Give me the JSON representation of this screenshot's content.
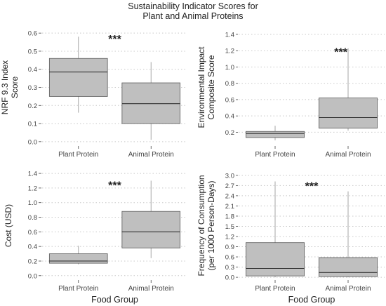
{
  "figure": {
    "title_lines": [
      "Sustainability Indicator Scores for",
      "Plant and Animal Proteins"
    ]
  },
  "chart_data": [
    {
      "type": "boxplot",
      "ylabel_lines": [
        "NRF 9.3 Index",
        "Score"
      ],
      "xlabel": "",
      "ylim": [
        -0.02,
        0.62
      ],
      "yticks": [
        0.0,
        0.1,
        0.2,
        0.3,
        0.4,
        0.5,
        0.6
      ],
      "ytick_labels": [
        "0.0",
        "0.1",
        "0.2",
        "0.3",
        "0.4",
        "0.5",
        "0.6"
      ],
      "categories": [
        "Plant Protein",
        "Animal Protein"
      ],
      "boxes": [
        {
          "q1": 0.25,
          "median": 0.385,
          "q3": 0.46,
          "whisker_low": 0.16,
          "whisker_high": 0.58
        },
        {
          "q1": 0.1,
          "median": 0.21,
          "q3": 0.325,
          "whisker_low": 0.01,
          "whisker_high": 0.44
        }
      ],
      "annotation": "***",
      "annotation_x": 1.5,
      "annotation_y": 0.57,
      "grid": true
    },
    {
      "type": "boxplot",
      "ylabel_lines": [
        "Environmental Impact",
        "Composite Score"
      ],
      "xlabel": "",
      "ylim": [
        0.04,
        1.46
      ],
      "yticks": [
        0.2,
        0.4,
        0.6,
        0.8,
        1.0,
        1.2,
        1.4
      ],
      "ytick_labels": [
        "0.2",
        "0.4",
        "0.6",
        "0.8",
        "1.0",
        "1.2",
        "1.4"
      ],
      "categories": [
        "Plant Protein",
        "Animal Protein"
      ],
      "boxes": [
        {
          "q1": 0.135,
          "median": 0.185,
          "q3": 0.21,
          "whisker_low": 0.1,
          "whisker_high": 0.28
        },
        {
          "q1": 0.25,
          "median": 0.38,
          "q3": 0.62,
          "whisker_low": 0.22,
          "whisker_high": 1.23
        }
      ],
      "annotation": "***",
      "annotation_x": 1.9,
      "annotation_y": 1.19,
      "grid": true
    },
    {
      "type": "boxplot",
      "ylabel_lines": [
        "Cost (USD)"
      ],
      "xlabel": "Food Group",
      "ylim": [
        -0.05,
        1.42
      ],
      "yticks": [
        0.0,
        0.2,
        0.4,
        0.6,
        0.8,
        1.0,
        1.2,
        1.4
      ],
      "ytick_labels": [
        "0.0",
        "0.2",
        "0.4",
        "0.6",
        "0.8",
        "1.0",
        "1.2",
        "1.4"
      ],
      "categories": [
        "Plant Protein",
        "Animal Protein"
      ],
      "boxes": [
        {
          "q1": 0.17,
          "median": 0.2,
          "q3": 0.3,
          "whisker_low": 0.155,
          "whisker_high": 0.41
        },
        {
          "q1": 0.38,
          "median": 0.6,
          "q3": 0.88,
          "whisker_low": 0.24,
          "whisker_high": 1.3
        }
      ],
      "annotation": "***",
      "annotation_x": 1.5,
      "annotation_y": 1.24,
      "grid": true
    },
    {
      "type": "boxplot",
      "ylabel_lines": [
        "Frequency of Consumption",
        "(per 1000 Person-Days)"
      ],
      "xlabel": "Food Group",
      "ylim": [
        -0.06,
        3.1
      ],
      "yticks": [
        0.0,
        0.3,
        0.6,
        0.9,
        1.2,
        1.5,
        1.8,
        2.1,
        2.4,
        2.7,
        3.0
      ],
      "ytick_labels": [
        "0.0",
        "0.3",
        "0.6",
        "0.9",
        "1.2",
        "1.5",
        "1.8",
        "2.1",
        "2.4",
        "2.7",
        "3.0"
      ],
      "categories": [
        "Plant Protein",
        "Animal Protein"
      ],
      "boxes": [
        {
          "q1": 0.04,
          "median": 0.26,
          "q3": 1.02,
          "whisker_low": 0.0,
          "whisker_high": 2.82
        },
        {
          "q1": 0.02,
          "median": 0.14,
          "q3": 0.58,
          "whisker_low": 0.0,
          "whisker_high": 2.53
        }
      ],
      "annotation": "***",
      "annotation_x": 1.5,
      "annotation_y": 2.7,
      "grid": true
    }
  ],
  "style": {
    "box_fill": "#bfbfbf",
    "box_stroke": "#595959",
    "whisker_color": "#a6a6a6",
    "grid_color": "#c8c8c8",
    "text_color": "#222222",
    "tick_color": "#444444"
  }
}
